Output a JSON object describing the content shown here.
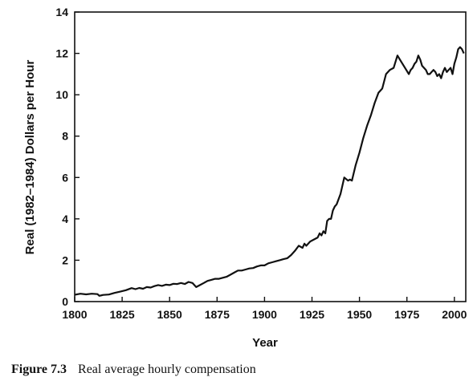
{
  "chart_data": {
    "type": "line",
    "xlabel": "Year",
    "ylabel": "Real (1982–1984) Dollars per Hour",
    "xlim": [
      1800,
      2006
    ],
    "ylim": [
      0,
      14
    ],
    "x_ticks": [
      1800,
      1825,
      1850,
      1875,
      1900,
      1925,
      1950,
      1975,
      2000
    ],
    "y_ticks": [
      0,
      2,
      4,
      6,
      8,
      10,
      12,
      14
    ],
    "grid": false,
    "series": [
      {
        "x": [
          1800,
          1803,
          1806,
          1809,
          1812,
          1813,
          1815,
          1818,
          1821,
          1824,
          1827,
          1830,
          1832,
          1834,
          1836,
          1838,
          1840,
          1842,
          1844,
          1846,
          1848,
          1850,
          1852,
          1854,
          1856,
          1858,
          1860,
          1862,
          1864,
          1866,
          1868,
          1870,
          1872,
          1874,
          1876,
          1878,
          1880,
          1882,
          1884,
          1886,
          1888,
          1890,
          1892,
          1894,
          1896,
          1898,
          1900,
          1902,
          1904,
          1906,
          1908,
          1910,
          1912,
          1914,
          1916,
          1918,
          1920,
          1921,
          1922,
          1924,
          1926,
          1928,
          1929,
          1930,
          1931,
          1932,
          1933,
          1934,
          1935,
          1936,
          1937,
          1938,
          1940,
          1942,
          1944,
          1945,
          1946,
          1948,
          1950,
          1952,
          1954,
          1956,
          1958,
          1960,
          1962,
          1964,
          1966,
          1968,
          1970,
          1972,
          1974,
          1976,
          1977,
          1978,
          1979,
          1980,
          1981,
          1982,
          1983,
          1984,
          1985,
          1986,
          1987,
          1988,
          1989,
          1990,
          1991,
          1992,
          1993,
          1994,
          1995,
          1996,
          1997,
          1998,
          1999,
          2000,
          2001,
          2002,
          2003,
          2004,
          2005
        ],
        "values": [
          0.33,
          0.38,
          0.35,
          0.38,
          0.36,
          0.28,
          0.32,
          0.34,
          0.42,
          0.48,
          0.55,
          0.65,
          0.6,
          0.66,
          0.62,
          0.7,
          0.68,
          0.75,
          0.8,
          0.76,
          0.82,
          0.8,
          0.86,
          0.85,
          0.9,
          0.85,
          0.95,
          0.9,
          0.7,
          0.8,
          0.9,
          1.0,
          1.05,
          1.1,
          1.1,
          1.15,
          1.2,
          1.3,
          1.4,
          1.5,
          1.5,
          1.55,
          1.6,
          1.62,
          1.7,
          1.75,
          1.75,
          1.85,
          1.9,
          1.95,
          2.0,
          2.05,
          2.1,
          2.25,
          2.45,
          2.7,
          2.6,
          2.8,
          2.7,
          2.9,
          3.0,
          3.1,
          3.3,
          3.2,
          3.4,
          3.3,
          3.9,
          4.0,
          4.0,
          4.4,
          4.6,
          4.7,
          5.2,
          6.0,
          5.85,
          5.9,
          5.85,
          6.6,
          7.2,
          7.9,
          8.5,
          9.0,
          9.6,
          10.1,
          10.3,
          11.0,
          11.2,
          11.3,
          11.9,
          11.6,
          11.3,
          11.0,
          11.2,
          11.3,
          11.5,
          11.6,
          11.9,
          11.7,
          11.4,
          11.3,
          11.2,
          11.0,
          11.0,
          11.1,
          11.2,
          11.1,
          10.9,
          11.0,
          10.8,
          11.1,
          11.3,
          11.1,
          11.2,
          11.3,
          11.0,
          11.5,
          11.8,
          12.2,
          12.3,
          12.2,
          12.0
        ]
      }
    ]
  },
  "caption": {
    "label": "Figure 7.3",
    "text": "Real average hourly compensation"
  }
}
